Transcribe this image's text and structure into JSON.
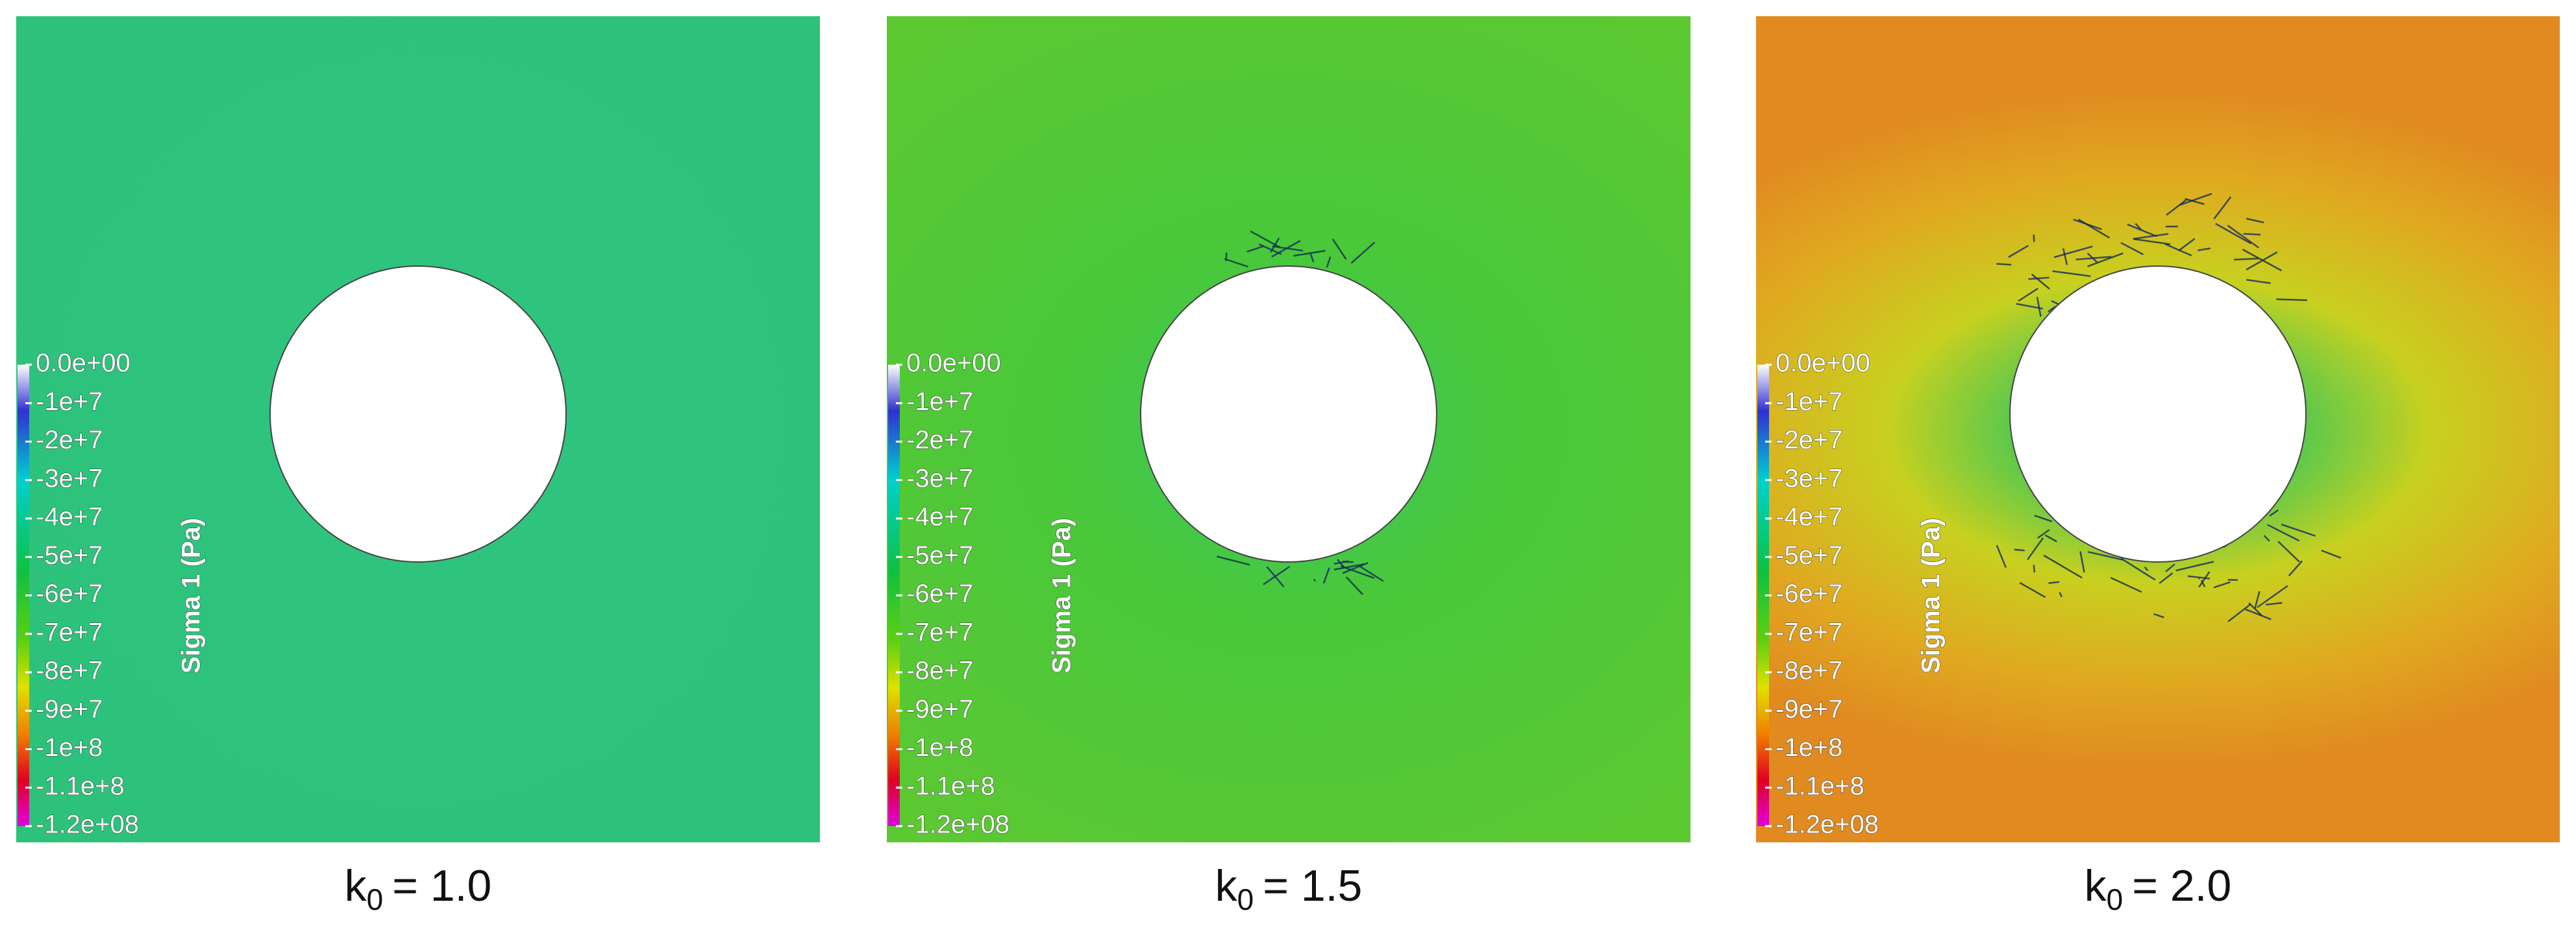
{
  "panels": [
    {
      "caption": {
        "symbol": "k",
        "subscript": "0",
        "value": "= 1.0"
      }
    },
    {
      "caption": {
        "symbol": "k",
        "subscript": "0",
        "value": "= 1.5"
      }
    },
    {
      "caption": {
        "symbol": "k",
        "subscript": "0",
        "value": "= 2.0"
      }
    }
  ],
  "colorbar": {
    "title": "Sigma 1 (Pa)",
    "labels": [
      "0.0e+00",
      "-1e+7",
      "-2e+7",
      "-3e+7",
      "-4e+7",
      "-5e+7",
      "-6e+7",
      "-7e+7",
      "-8e+7",
      "-9e+7",
      "-1e+8",
      "-1.1e+8",
      "-1.2e+08"
    ]
  }
}
